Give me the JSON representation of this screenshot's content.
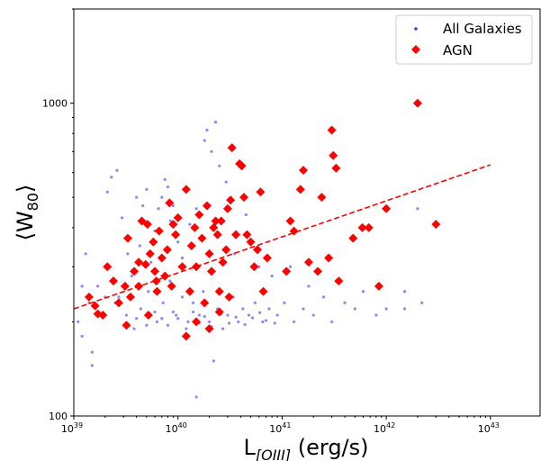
{
  "chart_data": {
    "type": "scatter",
    "xlabel": "L",
    "xlabel_sub": "[OIII]",
    "xlabel_unit": " (erg/s)",
    "ylabel": "⟨W",
    "ylabel_sub": "80",
    "ylabel_close": "⟩",
    "xscale": "log",
    "yscale": "log",
    "xlim": [
      1e+39,
      3e+43
    ],
    "ylim": [
      100,
      2000
    ],
    "x_ticks": [
      {
        "base": "10",
        "exp": "39",
        "value": 1e+39
      },
      {
        "base": "10",
        "exp": "40",
        "value": 1e+40
      },
      {
        "base": "10",
        "exp": "41",
        "value": 1e+41
      },
      {
        "base": "10",
        "exp": "42",
        "value": 1e+42
      },
      {
        "base": "10",
        "exp": "43",
        "value": 1e+43
      }
    ],
    "y_ticks": [
      {
        "label": "100",
        "value": 100
      },
      {
        "label": "1000",
        "value": 1000
      }
    ],
    "legend_position": "top-right",
    "series": [
      {
        "name": "All Galaxies",
        "marker": "dot",
        "color": "#3b3bf5",
        "points": [
          [
            1.2e+39,
            180
          ],
          [
            1.5e+39,
            160
          ],
          [
            1.5e+39,
            145
          ],
          [
            1.8e+39,
            210
          ],
          [
            2e+39,
            240
          ],
          [
            2.1e+39,
            520
          ],
          [
            2.3e+39,
            580
          ],
          [
            2.6e+39,
            610
          ],
          [
            2.9e+39,
            430
          ],
          [
            3.3e+39,
            330
          ],
          [
            3.6e+39,
            280
          ],
          [
            4e+39,
            500
          ],
          [
            4.3e+39,
            350
          ],
          [
            4.6e+39,
            470
          ],
          [
            5e+39,
            530
          ],
          [
            5.5e+39,
            310
          ],
          [
            6e+39,
            390
          ],
          [
            6.5e+39,
            460
          ],
          [
            7e+39,
            500
          ],
          [
            7.5e+39,
            570
          ],
          [
            8e+39,
            540
          ],
          [
            8.5e+39,
            420
          ],
          [
            9e+39,
            470
          ],
          [
            1e+40,
            360
          ],
          [
            1.1e+40,
            320
          ],
          [
            1.3e+40,
            410
          ],
          [
            1.5e+40,
            460
          ],
          [
            1.8e+40,
            760
          ],
          [
            1.9e+40,
            820
          ],
          [
            2.1e+40,
            700
          ],
          [
            2.3e+40,
            870
          ],
          [
            2.5e+40,
            630
          ],
          [
            2.9e+40,
            560
          ],
          [
            1.5e+40,
            115
          ],
          [
            2.2e+40,
            150
          ],
          [
            3.5e+40,
            330
          ],
          [
            4.5e+40,
            440
          ],
          [
            6e+40,
            300
          ],
          [
            8e+40,
            280
          ],
          [
            1.2e+41,
            300
          ],
          [
            1.8e+41,
            260
          ],
          [
            2.5e+41,
            240
          ],
          [
            4e+41,
            230
          ],
          [
            6e+41,
            250
          ],
          [
            1e+42,
            220
          ],
          [
            1.5e+42,
            250
          ],
          [
            2e+42,
            460
          ],
          [
            2.2e+42,
            230
          ],
          [
            3e+39,
            260
          ],
          [
            2.5e+39,
            230
          ],
          [
            1.1e+39,
            200
          ],
          [
            1.3e+39,
            330
          ],
          [
            1.7e+39,
            260
          ],
          [
            2.2e+39,
            300
          ],
          [
            2.7e+39,
            240
          ],
          [
            3.2e+39,
            210
          ],
          [
            3.8e+39,
            190
          ],
          [
            4.4e+39,
            220
          ],
          [
            5.2e+39,
            250
          ],
          [
            6.3e+39,
            200
          ],
          [
            7.2e+39,
            230
          ],
          [
            8.4e+39,
            270
          ],
          [
            9.6e+39,
            210
          ],
          [
            1.1e+40,
            240
          ],
          [
            1.25e+40,
            200
          ],
          [
            1.4e+40,
            230
          ],
          [
            1.6e+40,
            210
          ],
          [
            1.75e+40,
            250
          ],
          [
            2e+40,
            200
          ],
          [
            2.4e+40,
            220
          ],
          [
            2.7e+40,
            190
          ],
          [
            3e+40,
            210
          ],
          [
            3.4e+40,
            240
          ],
          [
            3.8e+40,
            200
          ],
          [
            4.2e+40,
            220
          ],
          [
            4.8e+40,
            210
          ],
          [
            5.5e+40,
            230
          ],
          [
            6.5e+40,
            200
          ],
          [
            7.5e+40,
            220
          ],
          [
            9e+40,
            210
          ],
          [
            1.05e+41,
            230
          ],
          [
            1.3e+41,
            200
          ],
          [
            1.6e+41,
            220
          ],
          [
            2e+41,
            210
          ],
          [
            3e+41,
            200
          ],
          [
            1.5e+42,
            220
          ],
          [
            8e+41,
            210
          ],
          [
            5e+41,
            220
          ],
          [
            1.2e+39,
            260
          ],
          [
            1.4e+39,
            230
          ],
          [
            4e+39,
            205
          ],
          [
            5e+39,
            195
          ],
          [
            6e+39,
            215
          ],
          [
            7e+39,
            205
          ],
          [
            8e+39,
            195
          ],
          [
            9e+39,
            215
          ],
          [
            1e+40,
            205
          ],
          [
            1.2e+40,
            190
          ],
          [
            1.4e+40,
            215
          ],
          [
            1.6e+40,
            198
          ],
          [
            1.8e+40,
            208
          ],
          [
            2.1e+40,
            193
          ],
          [
            2.6e+40,
            212
          ],
          [
            3.1e+40,
            198
          ],
          [
            3.6e+40,
            207
          ],
          [
            4.4e+40,
            196
          ],
          [
            5.2e+40,
            206
          ],
          [
            6.1e+40,
            214
          ],
          [
            7e+40,
            202
          ],
          [
            8.5e+40,
            198
          ]
        ]
      },
      {
        "name": "AGN",
        "marker": "diamond",
        "color": "#ff0000",
        "points": [
          [
            1.4e+39,
            240
          ],
          [
            1.6e+39,
            225
          ],
          [
            1.9e+39,
            210
          ],
          [
            2.1e+39,
            300
          ],
          [
            2.4e+39,
            270
          ],
          [
            2.7e+39,
            230
          ],
          [
            3.1e+39,
            260
          ],
          [
            3.3e+39,
            370
          ],
          [
            3.5e+39,
            240
          ],
          [
            3.8e+39,
            290
          ],
          [
            4.2e+39,
            260
          ],
          [
            4.5e+39,
            420
          ],
          [
            4.9e+39,
            305
          ],
          [
            5.1e+39,
            410
          ],
          [
            5.4e+39,
            330
          ],
          [
            5.8e+39,
            360
          ],
          [
            6e+39,
            290
          ],
          [
            6.3e+39,
            250
          ],
          [
            6.6e+39,
            390
          ],
          [
            7e+39,
            320
          ],
          [
            7.5e+39,
            280
          ],
          [
            7.9e+39,
            340
          ],
          [
            8.3e+39,
            480
          ],
          [
            8.7e+39,
            260
          ],
          [
            9e+39,
            410
          ],
          [
            9.5e+39,
            380
          ],
          [
            1e+40,
            430
          ],
          [
            1.1e+40,
            300
          ],
          [
            1.2e+40,
            530
          ],
          [
            1.3e+40,
            250
          ],
          [
            1.35e+40,
            350
          ],
          [
            1.45e+40,
            400
          ],
          [
            1.5e+40,
            300
          ],
          [
            1.6e+40,
            440
          ],
          [
            1.7e+40,
            370
          ],
          [
            1.8e+40,
            230
          ],
          [
            1.9e+40,
            470
          ],
          [
            2e+40,
            330
          ],
          [
            2.1e+40,
            290
          ],
          [
            2.2e+40,
            400
          ],
          [
            2.3e+40,
            420
          ],
          [
            2.4e+40,
            380
          ],
          [
            2.5e+40,
            250
          ],
          [
            2.6e+40,
            420
          ],
          [
            2.7e+40,
            310
          ],
          [
            2.9e+40,
            340
          ],
          [
            3e+40,
            460
          ],
          [
            3.2e+40,
            490
          ],
          [
            3.3e+40,
            720
          ],
          [
            3.6e+40,
            380
          ],
          [
            3.9e+40,
            640
          ],
          [
            4.1e+40,
            630
          ],
          [
            4.3e+40,
            500
          ],
          [
            4.6e+40,
            380
          ],
          [
            5e+40,
            360
          ],
          [
            5.4e+40,
            300
          ],
          [
            5.8e+40,
            340
          ],
          [
            6.2e+40,
            520
          ],
          [
            6.6e+40,
            250
          ],
          [
            7.2e+40,
            320
          ],
          [
            1.1e+41,
            290
          ],
          [
            1.2e+41,
            420
          ],
          [
            1.3e+41,
            390
          ],
          [
            1.5e+41,
            530
          ],
          [
            1.6e+41,
            610
          ],
          [
            1.8e+41,
            310
          ],
          [
            2.2e+41,
            290
          ],
          [
            2.4e+41,
            500
          ],
          [
            2.8e+41,
            320
          ],
          [
            3e+41,
            820
          ],
          [
            3.1e+41,
            680
          ],
          [
            3.3e+41,
            620
          ],
          [
            3.5e+41,
            270
          ],
          [
            4.8e+41,
            370
          ],
          [
            5.9e+41,
            400
          ],
          [
            6.8e+41,
            400
          ],
          [
            8.5e+41,
            260
          ],
          [
            1e+42,
            460
          ],
          [
            2e+42,
            1000
          ],
          [
            3e+42,
            410
          ],
          [
            1.2e+40,
            180
          ],
          [
            1.5e+40,
            200
          ],
          [
            2e+40,
            190
          ],
          [
            2.5e+40,
            215
          ],
          [
            3.1e+40,
            240
          ],
          [
            5.2e+39,
            210
          ],
          [
            3.2e+39,
            195
          ],
          [
            1.7e+39,
            212
          ],
          [
            4.2e+39,
            310
          ],
          [
            6.2e+39,
            270
          ]
        ]
      }
    ],
    "trend_line": {
      "style": "dashed",
      "color": "#ff0000",
      "points": [
        [
          1e+39,
          220
        ],
        [
          1e+43,
          635
        ]
      ]
    }
  }
}
